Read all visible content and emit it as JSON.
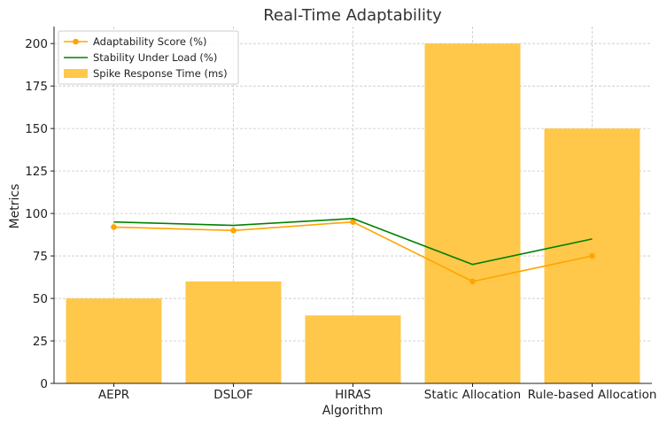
{
  "chart_data": {
    "type": "bar",
    "title": "Real-Time Adaptability",
    "xlabel": "Algorithm",
    "ylabel": "Metrics",
    "categories": [
      "AEPR",
      "DSLOF",
      "HIRAS",
      "Static Allocation",
      "Rule-based Allocation"
    ],
    "ylim": [
      0,
      210
    ],
    "yticks": [
      0,
      25,
      50,
      75,
      100,
      125,
      150,
      175,
      200
    ],
    "grid": true,
    "legend_position": "top-left",
    "series": [
      {
        "name": "Adaptability Score (%)",
        "type": "line",
        "marker": "circle",
        "color": "#FFA500",
        "values": [
          92,
          90,
          95,
          60,
          75
        ]
      },
      {
        "name": "Stability Under Load (%)",
        "type": "line",
        "marker": "none",
        "color": "#008000",
        "values": [
          95,
          93,
          97,
          70,
          85
        ]
      },
      {
        "name": "Spike Response Time (ms)",
        "type": "bar",
        "color": "#FFC84A",
        "values": [
          50,
          60,
          40,
          200,
          150
        ]
      }
    ]
  }
}
